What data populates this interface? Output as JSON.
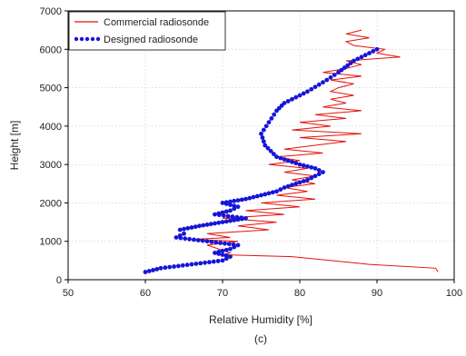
{
  "chart_data": {
    "type": "line",
    "title": "",
    "xlabel": "Relative Humidity [%]",
    "ylabel": "Height [m]",
    "xlim": [
      50,
      100
    ],
    "ylim": [
      0,
      7000
    ],
    "xticks": [
      50,
      60,
      70,
      80,
      90,
      100
    ],
    "yticks": [
      0,
      1000,
      2000,
      3000,
      4000,
      5000,
      6000,
      7000
    ],
    "grid": true,
    "legend_position": "top-left",
    "caption": "(c)",
    "colors": {
      "commercial": "#e3120b",
      "designed": "#1515d8"
    },
    "series": [
      {
        "name": "Commercial radiosonde",
        "style": "line",
        "points": [
          [
            97.9,
            200
          ],
          [
            97.6,
            300
          ],
          [
            89.0,
            400
          ],
          [
            79.0,
            600
          ],
          [
            70.0,
            650
          ],
          [
            71.0,
            700
          ],
          [
            68.0,
            900
          ],
          [
            72.0,
            1000
          ],
          [
            66.0,
            1050
          ],
          [
            71.0,
            1100
          ],
          [
            68.0,
            1200
          ],
          [
            76.0,
            1300
          ],
          [
            72.0,
            1400
          ],
          [
            77.0,
            1500
          ],
          [
            70.0,
            1600
          ],
          [
            78.0,
            1700
          ],
          [
            73.0,
            1800
          ],
          [
            80.0,
            1900
          ],
          [
            75.0,
            2000
          ],
          [
            82.0,
            2100
          ],
          [
            77.0,
            2200
          ],
          [
            81.0,
            2300
          ],
          [
            78.0,
            2400
          ],
          [
            82.0,
            2500
          ],
          [
            79.0,
            2600
          ],
          [
            82.0,
            2700
          ],
          [
            78.0,
            2800
          ],
          [
            81.0,
            2900
          ],
          [
            76.0,
            3000
          ],
          [
            80.0,
            3100
          ],
          [
            77.0,
            3200
          ],
          [
            83.0,
            3300
          ],
          [
            78.0,
            3400
          ],
          [
            82.0,
            3500
          ],
          [
            86.0,
            3600
          ],
          [
            80.0,
            3700
          ],
          [
            88.0,
            3800
          ],
          [
            79.0,
            3900
          ],
          [
            84.0,
            4000
          ],
          [
            80.0,
            4100
          ],
          [
            86.0,
            4200
          ],
          [
            82.0,
            4300
          ],
          [
            88.0,
            4400
          ],
          [
            83.0,
            4500
          ],
          [
            86.0,
            4600
          ],
          [
            84.0,
            4700
          ],
          [
            87.0,
            4800
          ],
          [
            84.0,
            4900
          ],
          [
            85.0,
            5000
          ],
          [
            87.0,
            5100
          ],
          [
            84.0,
            5200
          ],
          [
            88.0,
            5300
          ],
          [
            83.0,
            5400
          ],
          [
            86.0,
            5500
          ],
          [
            88.0,
            5600
          ],
          [
            86.0,
            5700
          ],
          [
            93.0,
            5800
          ],
          [
            90.0,
            5900
          ],
          [
            91.0,
            6000
          ],
          [
            87.0,
            6100
          ],
          [
            86.0,
            6200
          ],
          [
            89.0,
            6300
          ],
          [
            86.0,
            6400
          ],
          [
            88.0,
            6500
          ]
        ]
      },
      {
        "name": "Designed radiosonde",
        "style": "dotted",
        "points": [
          [
            60.0,
            200
          ],
          [
            62.0,
            300
          ],
          [
            66.0,
            400
          ],
          [
            70.0,
            500
          ],
          [
            71.0,
            600
          ],
          [
            69.0,
            700
          ],
          [
            71.0,
            800
          ],
          [
            72.0,
            900
          ],
          [
            68.0,
            1000
          ],
          [
            64.0,
            1100
          ],
          [
            65.0,
            1200
          ],
          [
            64.5,
            1300
          ],
          [
            67.0,
            1400
          ],
          [
            70.0,
            1500
          ],
          [
            73.0,
            1600
          ],
          [
            69.0,
            1700
          ],
          [
            71.0,
            1800
          ],
          [
            72.0,
            1900
          ],
          [
            70.0,
            2000
          ],
          [
            73.0,
            2100
          ],
          [
            75.0,
            2200
          ],
          [
            77.0,
            2300
          ],
          [
            78.0,
            2400
          ],
          [
            81.0,
            2600
          ],
          [
            82.0,
            2700
          ],
          [
            83.0,
            2800
          ],
          [
            82.0,
            2900
          ],
          [
            80.0,
            3000
          ],
          [
            77.0,
            3200
          ],
          [
            75.5,
            3500
          ],
          [
            75.0,
            3800
          ],
          [
            76.0,
            4100
          ],
          [
            77.0,
            4400
          ],
          [
            78.0,
            4600
          ],
          [
            81.0,
            4900
          ],
          [
            83.5,
            5200
          ],
          [
            85.0,
            5400
          ],
          [
            87.0,
            5700
          ],
          [
            89.0,
            5900
          ],
          [
            90.0,
            6000
          ]
        ]
      }
    ]
  }
}
